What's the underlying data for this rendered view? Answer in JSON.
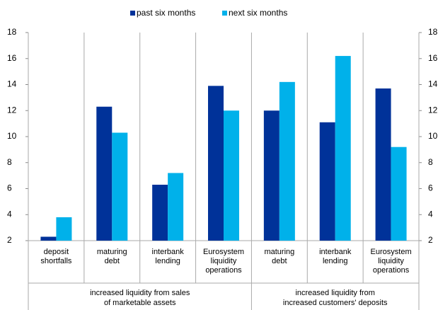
{
  "chart_data": {
    "type": "bar",
    "categories": [
      [
        "deposit",
        "shortfalls"
      ],
      [
        "maturing",
        "debt"
      ],
      [
        "interbank",
        "lending"
      ],
      [
        "Eurosystem",
        "liquidity",
        "operations"
      ],
      [
        "maturing",
        "debt"
      ],
      [
        "interbank",
        "lending"
      ],
      [
        "Eurosystem",
        "liquidity",
        "operations"
      ]
    ],
    "groups": [
      {
        "label": [
          "increased liquidity from sales",
          "of marketable assets"
        ],
        "span": 4
      },
      {
        "label": [
          "increased liquidity from",
          "increased customers' deposits"
        ],
        "span": 3
      }
    ],
    "series": [
      {
        "name": "past six months",
        "color": "#003299",
        "values": [
          2.3,
          12.3,
          6.3,
          13.9,
          12.0,
          11.1,
          13.7
        ]
      },
      {
        "name": "next six months",
        "color": "#00b1ea",
        "values": [
          3.8,
          10.3,
          7.2,
          12.0,
          14.2,
          16.2,
          9.2
        ]
      }
    ],
    "ylim": [
      2,
      18
    ],
    "yticks": [
      2,
      4,
      6,
      8,
      10,
      12,
      14,
      16,
      18
    ],
    "grid": false
  }
}
